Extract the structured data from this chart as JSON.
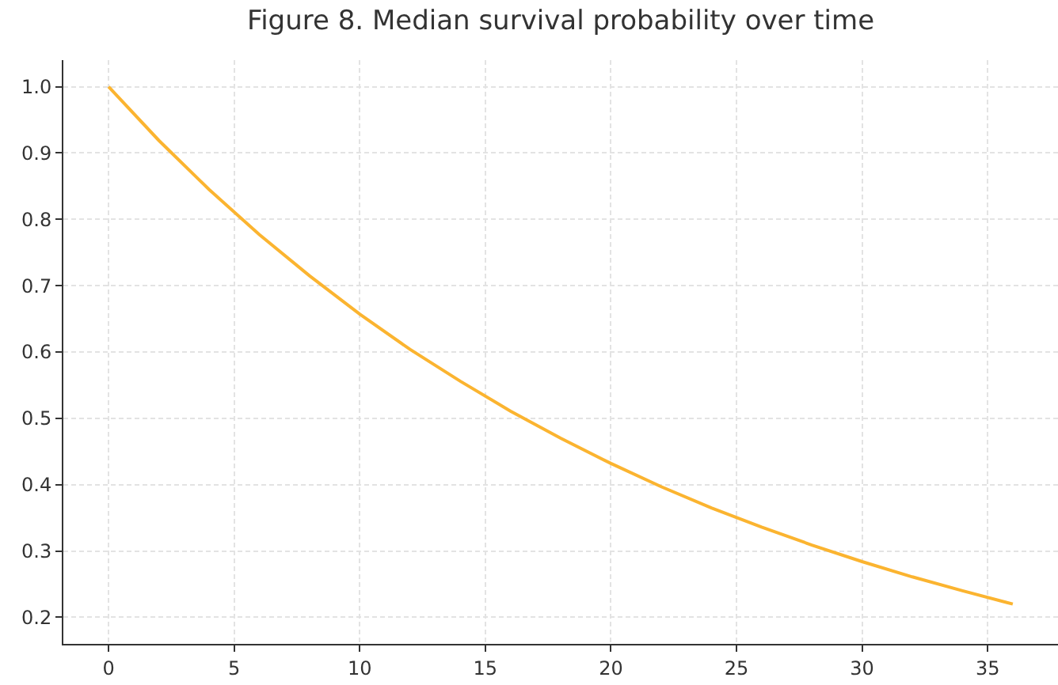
{
  "chart_data": {
    "type": "line",
    "title": "Figure 8. Median survival probability over time",
    "x": [
      0,
      2,
      4,
      6,
      8,
      10,
      12,
      14,
      16,
      18,
      20,
      22,
      24,
      26,
      28,
      30,
      32,
      34,
      36
    ],
    "series": [
      {
        "color": "#fbb430",
        "values": [
          1.0,
          0.919,
          0.845,
          0.777,
          0.715,
          0.657,
          0.604,
          0.556,
          0.511,
          0.47,
          0.432,
          0.397,
          0.365,
          0.336,
          0.309,
          0.284,
          0.261,
          0.24,
          0.22
        ]
      }
    ],
    "xlim": [
      -1.8,
      37.8
    ],
    "xticks": [
      0,
      5,
      10,
      15,
      20,
      25,
      30,
      35
    ],
    "ylim": [
      0.16,
      1.04
    ],
    "yticks": [
      {
        "value": 0.2,
        "label": "0.2"
      },
      0.3,
      0.4,
      0.5,
      0.6,
      0.7,
      0.8,
      0.9,
      {
        "value": 1,
        "label": "1.0"
      }
    ],
    "grid": true,
    "marker": "none",
    "line_style": "solid"
  }
}
